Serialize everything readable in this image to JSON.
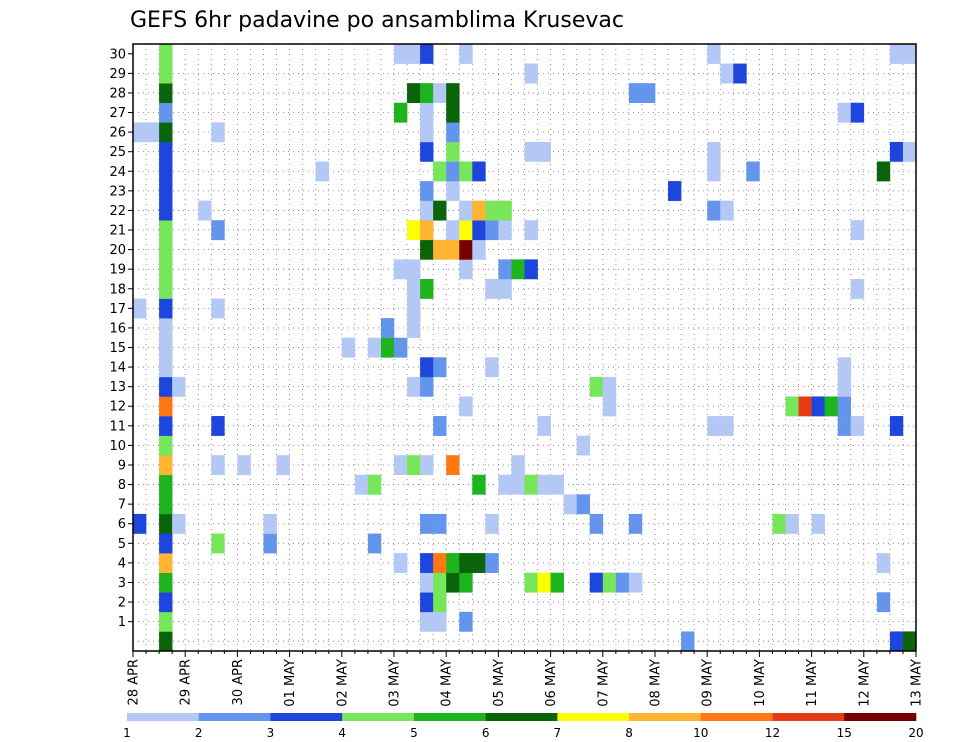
{
  "chart_data": {
    "type": "heatmap",
    "title": "GEFS 6hr padavine po ansamblima Krusevac",
    "xlabel": "",
    "ylabel": "",
    "x_labels": [
      "28 APR",
      "29 APR",
      "30 APR",
      "01 MAY",
      "02 MAY",
      "03 MAY",
      "04 MAY",
      "05 MAY",
      "06 MAY",
      "07 MAY",
      "08 MAY",
      "09 MAY",
      "10 MAY",
      "11 MAY",
      "12 MAY",
      "13 MAY"
    ],
    "y_labels": [
      "1",
      "2",
      "3",
      "4",
      "5",
      "6",
      "7",
      "8",
      "9",
      "10",
      "11",
      "12",
      "13",
      "14",
      "15",
      "16",
      "17",
      "18",
      "19",
      "20",
      "21",
      "22",
      "23",
      "24",
      "25",
      "26",
      "27",
      "28",
      "29",
      "30"
    ],
    "member_range": [
      0,
      30
    ],
    "steps_per_day": 4,
    "time_steps": 60,
    "grid": true,
    "colorbar": {
      "placement": "bottom",
      "labels": [
        "1",
        "2",
        "3",
        "4",
        "5",
        "6",
        "7",
        "8",
        "10",
        "12",
        "15",
        "20"
      ],
      "colors": [
        "#b4c8f5",
        "#6495ed",
        "#1e46dc",
        "#78e65a",
        "#1eb41e",
        "#0a640a",
        "#ffff00",
        "#ffb432",
        "#ff7814",
        "#e63c14",
        "#780000"
      ]
    },
    "cells": [
      {
        "m": 0,
        "t": 2,
        "v": 6
      },
      {
        "m": 0,
        "t": 42,
        "v": 2
      },
      {
        "m": 0,
        "t": 58,
        "v": 3
      },
      {
        "m": 0,
        "t": 59,
        "v": 6
      },
      {
        "m": 1,
        "t": 2,
        "v": 4
      },
      {
        "m": 1,
        "t": 22,
        "v": 1
      },
      {
        "m": 1,
        "t": 23,
        "v": 1
      },
      {
        "m": 1,
        "t": 25,
        "v": 2
      },
      {
        "m": 2,
        "t": 2,
        "v": 3
      },
      {
        "m": 2,
        "t": 22,
        "v": 3
      },
      {
        "m": 2,
        "t": 23,
        "v": 4
      },
      {
        "m": 2,
        "t": 57,
        "v": 2
      },
      {
        "m": 3,
        "t": 2,
        "v": 5
      },
      {
        "m": 3,
        "t": 22,
        "v": 1
      },
      {
        "m": 3,
        "t": 23,
        "v": 4
      },
      {
        "m": 3,
        "t": 24,
        "v": 6
      },
      {
        "m": 3,
        "t": 25,
        "v": 5
      },
      {
        "m": 3,
        "t": 30,
        "v": 4
      },
      {
        "m": 3,
        "t": 31,
        "v": 7
      },
      {
        "m": 3,
        "t": 32,
        "v": 5
      },
      {
        "m": 3,
        "t": 35,
        "v": 3
      },
      {
        "m": 3,
        "t": 36,
        "v": 4
      },
      {
        "m": 3,
        "t": 37,
        "v": 2
      },
      {
        "m": 3,
        "t": 38,
        "v": 1
      },
      {
        "m": 4,
        "t": 2,
        "v": 8
      },
      {
        "m": 4,
        "t": 20,
        "v": 1
      },
      {
        "m": 4,
        "t": 22,
        "v": 3
      },
      {
        "m": 4,
        "t": 23,
        "v": 9
      },
      {
        "m": 4,
        "t": 24,
        "v": 5
      },
      {
        "m": 4,
        "t": 25,
        "v": 6
      },
      {
        "m": 4,
        "t": 26,
        "v": 6
      },
      {
        "m": 4,
        "t": 27,
        "v": 2
      },
      {
        "m": 4,
        "t": 57,
        "v": 1
      },
      {
        "m": 5,
        "t": 2,
        "v": 3
      },
      {
        "m": 5,
        "t": 6,
        "v": 4
      },
      {
        "m": 5,
        "t": 10,
        "v": 2
      },
      {
        "m": 5,
        "t": 18,
        "v": 2
      },
      {
        "m": 6,
        "t": 0,
        "v": 3
      },
      {
        "m": 6,
        "t": 2,
        "v": 6
      },
      {
        "m": 6,
        "t": 3,
        "v": 1
      },
      {
        "m": 6,
        "t": 10,
        "v": 1
      },
      {
        "m": 6,
        "t": 22,
        "v": 2
      },
      {
        "m": 6,
        "t": 23,
        "v": 2
      },
      {
        "m": 6,
        "t": 27,
        "v": 1
      },
      {
        "m": 6,
        "t": 35,
        "v": 2
      },
      {
        "m": 6,
        "t": 38,
        "v": 2
      },
      {
        "m": 6,
        "t": 49,
        "v": 4
      },
      {
        "m": 6,
        "t": 50,
        "v": 1
      },
      {
        "m": 6,
        "t": 52,
        "v": 1
      },
      {
        "m": 7,
        "t": 2,
        "v": 5
      },
      {
        "m": 7,
        "t": 33,
        "v": 1
      },
      {
        "m": 7,
        "t": 34,
        "v": 2
      },
      {
        "m": 8,
        "t": 2,
        "v": 5
      },
      {
        "m": 8,
        "t": 17,
        "v": 1
      },
      {
        "m": 8,
        "t": 18,
        "v": 4
      },
      {
        "m": 8,
        "t": 26,
        "v": 5
      },
      {
        "m": 8,
        "t": 28,
        "v": 1
      },
      {
        "m": 8,
        "t": 29,
        "v": 1
      },
      {
        "m": 8,
        "t": 30,
        "v": 4
      },
      {
        "m": 8,
        "t": 31,
        "v": 1
      },
      {
        "m": 8,
        "t": 32,
        "v": 1
      },
      {
        "m": 9,
        "t": 2,
        "v": 8
      },
      {
        "m": 9,
        "t": 6,
        "v": 1
      },
      {
        "m": 9,
        "t": 8,
        "v": 1
      },
      {
        "m": 9,
        "t": 11,
        "v": 1
      },
      {
        "m": 9,
        "t": 20,
        "v": 1
      },
      {
        "m": 9,
        "t": 21,
        "v": 4
      },
      {
        "m": 9,
        "t": 22,
        "v": 1
      },
      {
        "m": 9,
        "t": 24,
        "v": 9
      },
      {
        "m": 9,
        "t": 29,
        "v": 1
      },
      {
        "m": 10,
        "t": 2,
        "v": 4
      },
      {
        "m": 10,
        "t": 34,
        "v": 1
      },
      {
        "m": 11,
        "t": 2,
        "v": 3
      },
      {
        "m": 11,
        "t": 6,
        "v": 3
      },
      {
        "m": 11,
        "t": 23,
        "v": 2
      },
      {
        "m": 11,
        "t": 31,
        "v": 1
      },
      {
        "m": 11,
        "t": 44,
        "v": 1
      },
      {
        "m": 11,
        "t": 45,
        "v": 1
      },
      {
        "m": 11,
        "t": 54,
        "v": 2
      },
      {
        "m": 11,
        "t": 55,
        "v": 1
      },
      {
        "m": 11,
        "t": 58,
        "v": 3
      },
      {
        "m": 12,
        "t": 2,
        "v": 9
      },
      {
        "m": 12,
        "t": 25,
        "v": 1
      },
      {
        "m": 12,
        "t": 36,
        "v": 1
      },
      {
        "m": 12,
        "t": 50,
        "v": 4
      },
      {
        "m": 12,
        "t": 51,
        "v": 10
      },
      {
        "m": 12,
        "t": 52,
        "v": 3
      },
      {
        "m": 12,
        "t": 53,
        "v": 5
      },
      {
        "m": 12,
        "t": 54,
        "v": 2
      },
      {
        "m": 13,
        "t": 2,
        "v": 3
      },
      {
        "m": 13,
        "t": 3,
        "v": 1
      },
      {
        "m": 13,
        "t": 21,
        "v": 1
      },
      {
        "m": 13,
        "t": 22,
        "v": 2
      },
      {
        "m": 13,
        "t": 35,
        "v": 4
      },
      {
        "m": 13,
        "t": 36,
        "v": 1
      },
      {
        "m": 13,
        "t": 54,
        "v": 1
      },
      {
        "m": 14,
        "t": 2,
        "v": 1
      },
      {
        "m": 14,
        "t": 22,
        "v": 3
      },
      {
        "m": 14,
        "t": 23,
        "v": 2
      },
      {
        "m": 14,
        "t": 27,
        "v": 1
      },
      {
        "m": 14,
        "t": 54,
        "v": 1
      },
      {
        "m": 15,
        "t": 2,
        "v": 1
      },
      {
        "m": 15,
        "t": 16,
        "v": 1
      },
      {
        "m": 15,
        "t": 18,
        "v": 1
      },
      {
        "m": 15,
        "t": 19,
        "v": 5
      },
      {
        "m": 15,
        "t": 20,
        "v": 2
      },
      {
        "m": 16,
        "t": 2,
        "v": 1
      },
      {
        "m": 16,
        "t": 19,
        "v": 2
      },
      {
        "m": 16,
        "t": 21,
        "v": 1
      },
      {
        "m": 17,
        "t": 0,
        "v": 1
      },
      {
        "m": 17,
        "t": 2,
        "v": 3
      },
      {
        "m": 17,
        "t": 6,
        "v": 1
      },
      {
        "m": 17,
        "t": 21,
        "v": 1
      },
      {
        "m": 18,
        "t": 2,
        "v": 4
      },
      {
        "m": 18,
        "t": 21,
        "v": 1
      },
      {
        "m": 18,
        "t": 22,
        "v": 5
      },
      {
        "m": 18,
        "t": 27,
        "v": 1
      },
      {
        "m": 18,
        "t": 28,
        "v": 1
      },
      {
        "m": 18,
        "t": 55,
        "v": 1
      },
      {
        "m": 19,
        "t": 2,
        "v": 4
      },
      {
        "m": 19,
        "t": 20,
        "v": 1
      },
      {
        "m": 19,
        "t": 21,
        "v": 1
      },
      {
        "m": 19,
        "t": 25,
        "v": 1
      },
      {
        "m": 19,
        "t": 28,
        "v": 2
      },
      {
        "m": 19,
        "t": 29,
        "v": 5
      },
      {
        "m": 19,
        "t": 30,
        "v": 3
      },
      {
        "m": 20,
        "t": 2,
        "v": 4
      },
      {
        "m": 20,
        "t": 22,
        "v": 6
      },
      {
        "m": 20,
        "t": 23,
        "v": 8
      },
      {
        "m": 20,
        "t": 24,
        "v": 8
      },
      {
        "m": 20,
        "t": 25,
        "v": 11
      },
      {
        "m": 20,
        "t": 26,
        "v": 1
      },
      {
        "m": 21,
        "t": 2,
        "v": 4
      },
      {
        "m": 21,
        "t": 6,
        "v": 2
      },
      {
        "m": 21,
        "t": 21,
        "v": 7
      },
      {
        "m": 21,
        "t": 22,
        "v": 8
      },
      {
        "m": 21,
        "t": 24,
        "v": 1
      },
      {
        "m": 21,
        "t": 25,
        "v": 7
      },
      {
        "m": 21,
        "t": 26,
        "v": 3
      },
      {
        "m": 21,
        "t": 27,
        "v": 2
      },
      {
        "m": 21,
        "t": 28,
        "v": 1
      },
      {
        "m": 21,
        "t": 30,
        "v": 1
      },
      {
        "m": 21,
        "t": 55,
        "v": 1
      },
      {
        "m": 22,
        "t": 2,
        "v": 3
      },
      {
        "m": 22,
        "t": 5,
        "v": 1
      },
      {
        "m": 22,
        "t": 22,
        "v": 1
      },
      {
        "m": 22,
        "t": 23,
        "v": 6
      },
      {
        "m": 22,
        "t": 25,
        "v": 1
      },
      {
        "m": 22,
        "t": 26,
        "v": 8
      },
      {
        "m": 22,
        "t": 27,
        "v": 4
      },
      {
        "m": 22,
        "t": 28,
        "v": 4
      },
      {
        "m": 22,
        "t": 44,
        "v": 2
      },
      {
        "m": 22,
        "t": 45,
        "v": 1
      },
      {
        "m": 23,
        "t": 2,
        "v": 3
      },
      {
        "m": 23,
        "t": 22,
        "v": 2
      },
      {
        "m": 23,
        "t": 24,
        "v": 1
      },
      {
        "m": 23,
        "t": 41,
        "v": 3
      },
      {
        "m": 24,
        "t": 2,
        "v": 3
      },
      {
        "m": 24,
        "t": 14,
        "v": 1
      },
      {
        "m": 24,
        "t": 23,
        "v": 4
      },
      {
        "m": 24,
        "t": 24,
        "v": 2
      },
      {
        "m": 24,
        "t": 25,
        "v": 4
      },
      {
        "m": 24,
        "t": 26,
        "v": 3
      },
      {
        "m": 24,
        "t": 44,
        "v": 1
      },
      {
        "m": 24,
        "t": 47,
        "v": 2
      },
      {
        "m": 24,
        "t": 57,
        "v": 6
      },
      {
        "m": 25,
        "t": 2,
        "v": 3
      },
      {
        "m": 25,
        "t": 22,
        "v": 3
      },
      {
        "m": 25,
        "t": 24,
        "v": 4
      },
      {
        "m": 25,
        "t": 30,
        "v": 1
      },
      {
        "m": 25,
        "t": 31,
        "v": 1
      },
      {
        "m": 25,
        "t": 44,
        "v": 1
      },
      {
        "m": 25,
        "t": 58,
        "v": 3
      },
      {
        "m": 25,
        "t": 59,
        "v": 1
      },
      {
        "m": 26,
        "t": 0,
        "v": 1
      },
      {
        "m": 26,
        "t": 1,
        "v": 1
      },
      {
        "m": 26,
        "t": 2,
        "v": 6
      },
      {
        "m": 26,
        "t": 6,
        "v": 1
      },
      {
        "m": 26,
        "t": 22,
        "v": 1
      },
      {
        "m": 26,
        "t": 24,
        "v": 2
      },
      {
        "m": 27,
        "t": 2,
        "v": 2
      },
      {
        "m": 27,
        "t": 20,
        "v": 5
      },
      {
        "m": 27,
        "t": 22,
        "v": 1
      },
      {
        "m": 27,
        "t": 24,
        "v": 6
      },
      {
        "m": 27,
        "t": 54,
        "v": 1
      },
      {
        "m": 27,
        "t": 55,
        "v": 3
      },
      {
        "m": 28,
        "t": 2,
        "v": 6
      },
      {
        "m": 28,
        "t": 21,
        "v": 6
      },
      {
        "m": 28,
        "t": 22,
        "v": 5
      },
      {
        "m": 28,
        "t": 23,
        "v": 1
      },
      {
        "m": 28,
        "t": 24,
        "v": 6
      },
      {
        "m": 28,
        "t": 38,
        "v": 2
      },
      {
        "m": 28,
        "t": 39,
        "v": 2
      },
      {
        "m": 29,
        "t": 2,
        "v": 4
      },
      {
        "m": 29,
        "t": 30,
        "v": 1
      },
      {
        "m": 29,
        "t": 45,
        "v": 1
      },
      {
        "m": 29,
        "t": 46,
        "v": 3
      },
      {
        "m": 30,
        "t": 2,
        "v": 4
      },
      {
        "m": 30,
        "t": 20,
        "v": 1
      },
      {
        "m": 30,
        "t": 21,
        "v": 1
      },
      {
        "m": 30,
        "t": 22,
        "v": 3
      },
      {
        "m": 30,
        "t": 25,
        "v": 1
      },
      {
        "m": 30,
        "t": 44,
        "v": 1
      },
      {
        "m": 30,
        "t": 58,
        "v": 1
      },
      {
        "m": 30,
        "t": 59,
        "v": 1
      }
    ]
  }
}
